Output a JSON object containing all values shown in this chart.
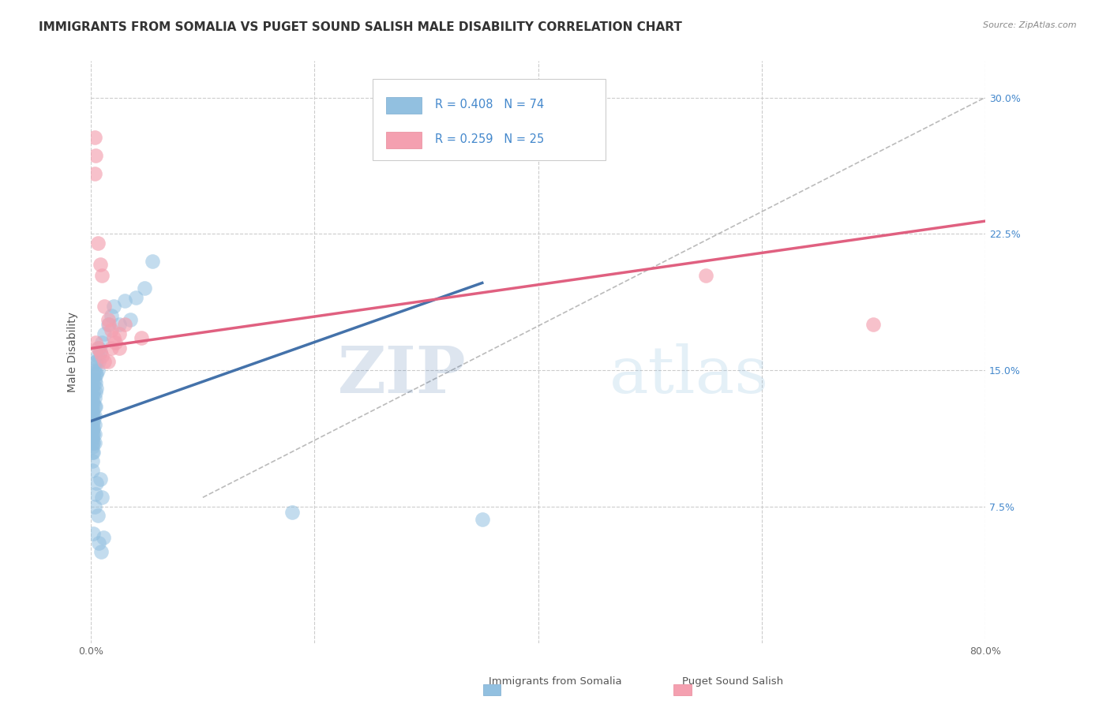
{
  "title": "IMMIGRANTS FROM SOMALIA VS PUGET SOUND SALISH MALE DISABILITY CORRELATION CHART",
  "source": "Source: ZipAtlas.com",
  "ylabel": "Male Disability",
  "xlim": [
    0.0,
    0.8
  ],
  "ylim": [
    0.0,
    0.32
  ],
  "ytick_positions": [
    0.075,
    0.15,
    0.225,
    0.3
  ],
  "ytick_labels": [
    "7.5%",
    "15.0%",
    "22.5%",
    "30.0%"
  ],
  "series1_name": "Immigrants from Somalia",
  "series2_name": "Puget Sound Salish",
  "series1_color": "#92c0e0",
  "series2_color": "#f4a0b0",
  "series1_line_color": "#4472aa",
  "series2_line_color": "#e06080",
  "series1_R": 0.408,
  "series1_N": 74,
  "series2_R": 0.259,
  "series2_N": 25,
  "blue_line_x": [
    0.0,
    0.35
  ],
  "blue_line_y": [
    0.122,
    0.198
  ],
  "pink_line_x": [
    0.0,
    0.8
  ],
  "pink_line_y": [
    0.162,
    0.232
  ],
  "dashed_line_x": [
    0.1,
    0.8
  ],
  "dashed_line_y": [
    0.08,
    0.3
  ],
  "watermark_zip": "ZIP",
  "watermark_atlas": "atlas",
  "background_color": "#ffffff",
  "title_fontsize": 11,
  "axis_fontsize": 10,
  "tick_fontsize": 9,
  "series1_points_x": [
    0.001,
    0.001,
    0.001,
    0.001,
    0.001,
    0.001,
    0.001,
    0.001,
    0.001,
    0.001,
    0.001,
    0.001,
    0.001,
    0.001,
    0.001,
    0.001,
    0.001,
    0.001,
    0.001,
    0.001,
    0.002,
    0.002,
    0.002,
    0.002,
    0.002,
    0.002,
    0.002,
    0.002,
    0.002,
    0.002,
    0.003,
    0.003,
    0.003,
    0.003,
    0.003,
    0.003,
    0.003,
    0.003,
    0.004,
    0.004,
    0.004,
    0.004,
    0.004,
    0.005,
    0.005,
    0.005,
    0.006,
    0.006,
    0.007,
    0.007,
    0.008,
    0.008,
    0.01,
    0.01,
    0.012,
    0.015,
    0.018,
    0.02,
    0.025,
    0.03,
    0.035,
    0.04,
    0.048,
    0.055,
    0.18,
    0.35,
    0.004,
    0.005,
    0.003,
    0.006,
    0.002,
    0.007,
    0.009,
    0.011
  ],
  "series1_points_y": [
    0.118,
    0.12,
    0.113,
    0.125,
    0.11,
    0.115,
    0.108,
    0.122,
    0.117,
    0.112,
    0.13,
    0.127,
    0.133,
    0.105,
    0.1,
    0.14,
    0.136,
    0.128,
    0.145,
    0.095,
    0.118,
    0.122,
    0.115,
    0.125,
    0.11,
    0.132,
    0.105,
    0.138,
    0.142,
    0.148,
    0.12,
    0.125,
    0.115,
    0.13,
    0.135,
    0.11,
    0.145,
    0.15,
    0.13,
    0.138,
    0.143,
    0.148,
    0.155,
    0.14,
    0.148,
    0.155,
    0.15,
    0.158,
    0.155,
    0.162,
    0.16,
    0.09,
    0.165,
    0.08,
    0.17,
    0.175,
    0.18,
    0.185,
    0.175,
    0.188,
    0.178,
    0.19,
    0.195,
    0.21,
    0.072,
    0.068,
    0.082,
    0.088,
    0.075,
    0.07,
    0.06,
    0.055,
    0.05,
    0.058
  ],
  "series2_points_x": [
    0.003,
    0.004,
    0.003,
    0.006,
    0.008,
    0.01,
    0.012,
    0.015,
    0.016,
    0.018,
    0.02,
    0.022,
    0.025,
    0.025,
    0.03,
    0.004,
    0.006,
    0.008,
    0.01,
    0.012,
    0.015,
    0.018,
    0.045,
    0.55,
    0.7
  ],
  "series2_points_y": [
    0.278,
    0.268,
    0.258,
    0.22,
    0.208,
    0.202,
    0.185,
    0.178,
    0.175,
    0.172,
    0.168,
    0.165,
    0.162,
    0.17,
    0.175,
    0.165,
    0.162,
    0.16,
    0.158,
    0.155,
    0.155,
    0.162,
    0.168,
    0.202,
    0.175
  ]
}
